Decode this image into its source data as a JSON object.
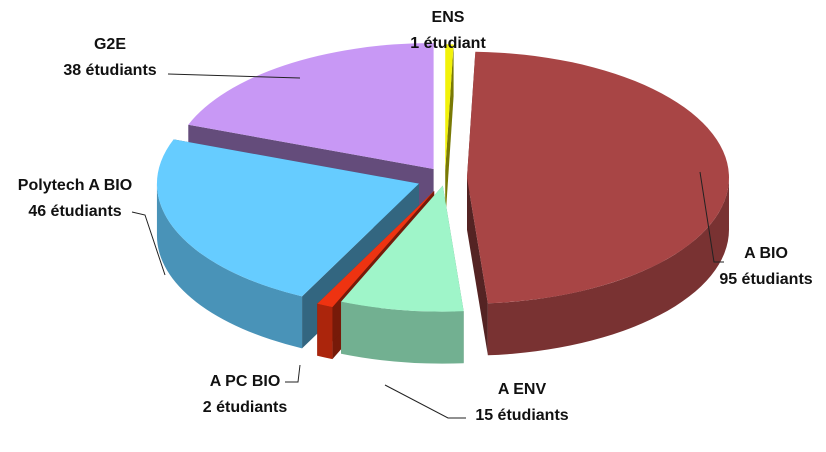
{
  "chart_data": {
    "type": "pie",
    "title": "",
    "style": "3d-exploded",
    "slices": [
      {
        "name": "ENS",
        "value": 1,
        "label": "1 étudiant",
        "color": "#f2f20a"
      },
      {
        "name": "A BIO",
        "value": 95,
        "label": "95 étudiants",
        "color": "#a84545"
      },
      {
        "name": "A ENV",
        "value": 15,
        "label": "15 étudiants",
        "color": "#9ff5c9"
      },
      {
        "name": "A PC BIO",
        "value": 2,
        "label": "2 étudiants",
        "color": "#ee3311"
      },
      {
        "name": "Polytech A BIO",
        "value": 46,
        "label": "46 étudiants",
        "color": "#66ccff"
      },
      {
        "name": "G2E",
        "value": 38,
        "label": "38 étudiants",
        "color": "#c898f5"
      }
    ]
  }
}
